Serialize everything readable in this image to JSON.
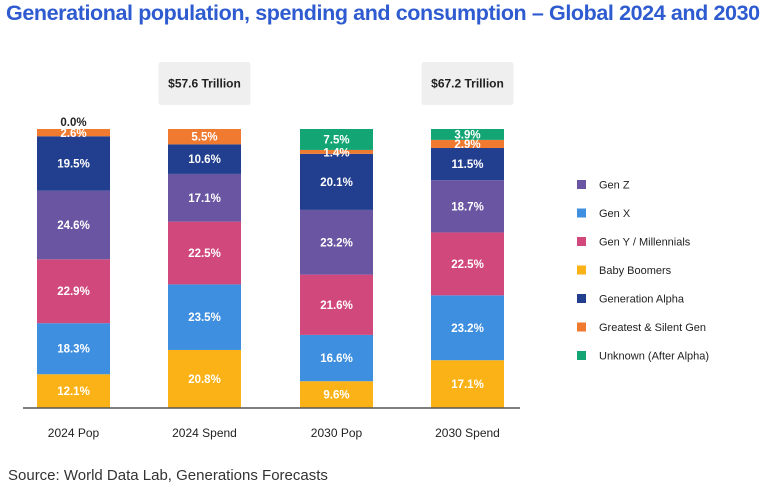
{
  "chart_data": {
    "type": "bar",
    "stacked": true,
    "title": "Generational population, spending and consumption – Global 2024 and 2030",
    "source": "Source: World Data Lab, Generations Forecasts",
    "xlabel": "",
    "ylabel": "",
    "ylim": [
      0,
      100
    ],
    "grid": false,
    "legend_position": "right",
    "categories": [
      "2024 Pop",
      "2024 Spend",
      "2030 Pop",
      "2030 Spend"
    ],
    "totals": [
      "",
      "$57.6 Trillion",
      "",
      "$67.2 Trillion"
    ],
    "series": [
      {
        "name": "Baby Boomers",
        "color": "#fbb216",
        "values": [
          12.1,
          20.8,
          9.6,
          17.1
        ]
      },
      {
        "name": "Gen X",
        "color": "#3f8fe0",
        "values": [
          18.3,
          23.5,
          16.6,
          23.2
        ]
      },
      {
        "name": "Gen Y / Millennials",
        "color": "#d1487c",
        "values": [
          22.9,
          22.5,
          21.6,
          22.5
        ]
      },
      {
        "name": "Gen Z",
        "color": "#6a55a2",
        "values": [
          24.6,
          17.1,
          23.2,
          18.7
        ]
      },
      {
        "name": "Generation Alpha",
        "color": "#223f8f",
        "values": [
          19.5,
          10.6,
          20.1,
          11.5
        ]
      },
      {
        "name": "Greatest & Silent Gen",
        "color": "#f07a30",
        "values": [
          2.6,
          5.5,
          1.4,
          2.9
        ]
      },
      {
        "name": "Unknown (After Alpha)",
        "color": "#13a574",
        "values": [
          0.0,
          0.0,
          7.5,
          3.9
        ]
      }
    ],
    "value_labels": [
      [
        "12.1%",
        "18.3%",
        "22.9%",
        "24.6%",
        "19.5%",
        "2.6%",
        "0.0%"
      ],
      [
        "20.8%",
        "23.5%",
        "22.5%",
        "17.1%",
        "10.6%",
        "5.5%",
        ""
      ],
      [
        "9.6%",
        "16.6%",
        "21.6%",
        "23.2%",
        "20.1%",
        "1.4%",
        "7.5%"
      ],
      [
        "17.1%",
        "23.2%",
        "22.5%",
        "18.7%",
        "11.5%",
        "2.9%",
        "3.9%"
      ]
    ],
    "legend_order": [
      "Gen Z",
      "Gen X",
      "Gen Y / Millennials",
      "Baby Boomers",
      "Generation Alpha",
      "Greatest & Silent Gen",
      "Unknown (After Alpha)"
    ]
  }
}
